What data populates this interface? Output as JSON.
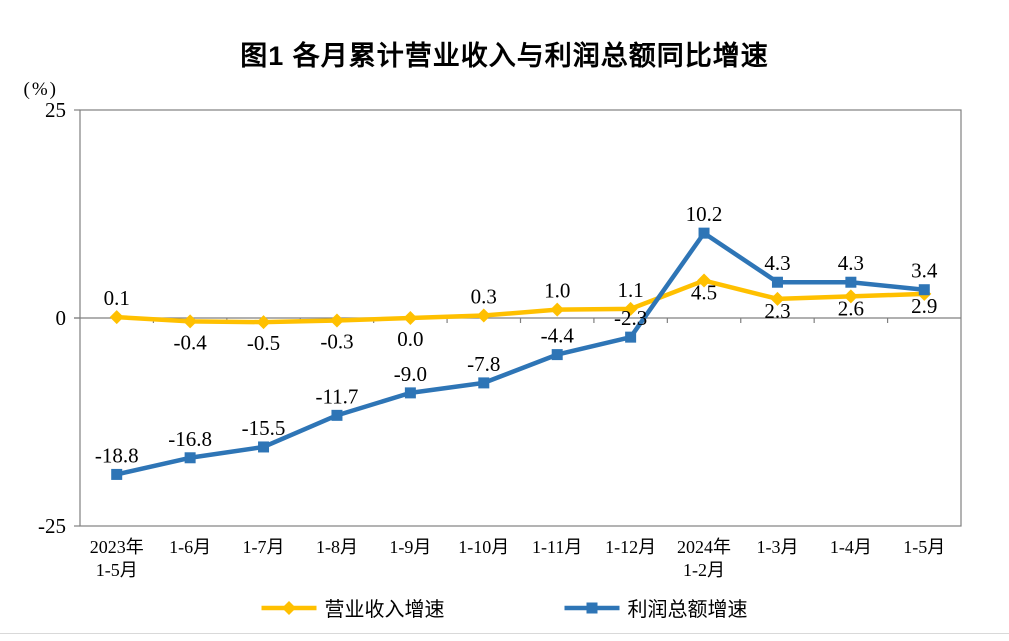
{
  "chart_data": {
    "type": "line",
    "title": "图1  各月累计营业收入与利润总额同比增速",
    "unit_label": "(%)",
    "categories": [
      "2023年1-5月",
      "1-6月",
      "1-7月",
      "1-8月",
      "1-9月",
      "1-10月",
      "1-11月",
      "1-12月",
      "2024年1-2月",
      "1-3月",
      "1-4月",
      "1-5月"
    ],
    "category_display_lines": [
      [
        "2023年",
        "1-5月"
      ],
      [
        "1-6月"
      ],
      [
        "1-7月"
      ],
      [
        "1-8月"
      ],
      [
        "1-9月"
      ],
      [
        "1-10月"
      ],
      [
        "1-11月"
      ],
      [
        "1-12月"
      ],
      [
        "2024年",
        "1-2月"
      ],
      [
        "1-3月"
      ],
      [
        "1-4月"
      ],
      [
        "1-5月"
      ]
    ],
    "ylim": [
      -25,
      25
    ],
    "y_ticks": [
      25,
      0,
      -25
    ],
    "grid": "zero-baseline-with-category-ticks",
    "legend_position": "bottom",
    "axis_color": "#808080",
    "series": [
      {
        "id": "revenue-growth",
        "name": "营业收入增速",
        "color": "#FFC000",
        "marker": "diamond",
        "values": [
          0.1,
          -0.4,
          -0.5,
          -0.3,
          0.0,
          0.3,
          1.0,
          1.1,
          4.5,
          2.3,
          2.6,
          2.9
        ],
        "label_side": [
          "above",
          "below",
          "below",
          "below",
          "below",
          "above",
          "above",
          "above",
          "below-near",
          "below-near",
          "below-near",
          "below-near"
        ]
      },
      {
        "id": "profit-growth",
        "name": "利润总额增速",
        "color": "#2E75B6",
        "marker": "square",
        "values": [
          -18.8,
          -16.8,
          -15.5,
          -11.7,
          -9.0,
          -7.8,
          -4.4,
          -2.3,
          10.2,
          4.3,
          4.3,
          3.4
        ],
        "label_side": [
          "above",
          "above",
          "above",
          "above",
          "above",
          "above",
          "above",
          "above",
          "above",
          "above",
          "above",
          "above"
        ]
      }
    ]
  }
}
